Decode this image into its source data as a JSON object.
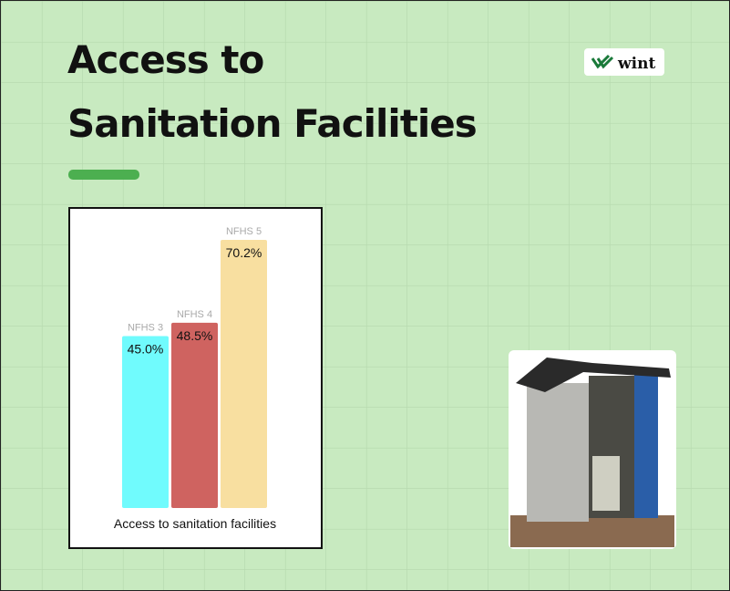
{
  "header": {
    "title_lines": [
      "Access to",
      "Sanitation Facilities"
    ],
    "brand": "wint"
  },
  "chart_data": {
    "type": "bar",
    "x_label": "Access to sanitation facilities",
    "categories": [
      "NFHS 3",
      "NFHS 4",
      "NFHS 5"
    ],
    "values": [
      45.0,
      48.5,
      70.2
    ],
    "value_labels": [
      "45.0%",
      "48.5%",
      "70.2%"
    ],
    "colors": [
      "#70fbfd",
      "#cf6360",
      "#f8dfa0"
    ]
  }
}
